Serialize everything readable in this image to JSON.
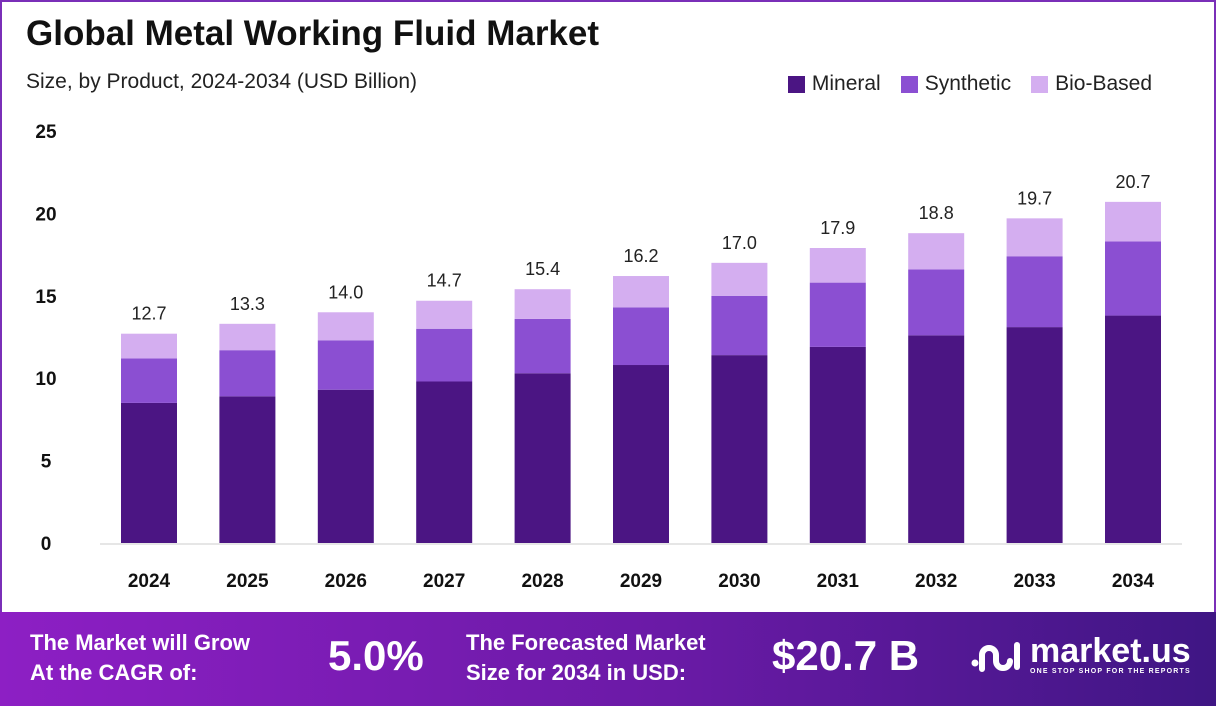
{
  "chart_data": {
    "type": "stacked-bar",
    "title": "Global Metal Working Fluid Market",
    "subtitle": "Size, by Product, 2024-2034 (USD Billion)",
    "categories": [
      "2024",
      "2025",
      "2026",
      "2027",
      "2028",
      "2029",
      "2030",
      "2031",
      "2032",
      "2033",
      "2034"
    ],
    "series": [
      {
        "name": "Mineral",
        "color": "#4b1583",
        "values": [
          8.5,
          8.9,
          9.3,
          9.8,
          10.3,
          10.8,
          11.4,
          11.9,
          12.6,
          13.1,
          13.8
        ]
      },
      {
        "name": "Synthetic",
        "color": "#8b4fd2",
        "values": [
          2.7,
          2.8,
          3.0,
          3.2,
          3.3,
          3.5,
          3.6,
          3.9,
          4.0,
          4.3,
          4.5
        ]
      },
      {
        "name": "Bio-Based",
        "color": "#d4aef0",
        "values": [
          1.5,
          1.6,
          1.7,
          1.7,
          1.8,
          1.9,
          2.0,
          2.1,
          2.2,
          2.3,
          2.4
        ]
      }
    ],
    "totals": [
      "12.7",
      "13.3",
      "14.0",
      "14.7",
      "15.4",
      "16.2",
      "17.0",
      "17.9",
      "18.8",
      "19.7",
      "20.7"
    ],
    "yticks": [
      "0",
      "5",
      "10",
      "15",
      "20",
      "25"
    ],
    "ylim": [
      0,
      25
    ],
    "grid": false,
    "legend_position": "top-right"
  },
  "footer": {
    "cagr_label_1": "The Market will Grow",
    "cagr_label_2": "At the CAGR of:",
    "cagr_value": "5.0%",
    "size_label_1": "The Forecasted Market",
    "size_label_2": "Size for 2034 in USD:",
    "size_value": "$20.7 B",
    "brand": "market.us",
    "tagline": "ONE STOP SHOP FOR THE REPORTS"
  }
}
